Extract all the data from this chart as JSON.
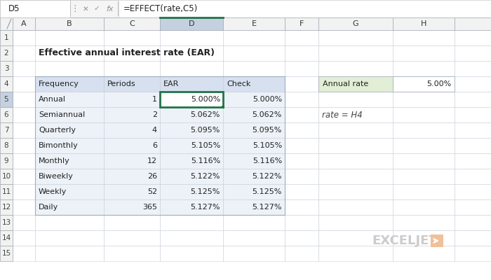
{
  "title": "Effective annual interest rate (EAR)",
  "formula_bar_cell": "D5",
  "formula_bar_formula": "=EFFECT(rate,C5)",
  "row_headers": [
    "1",
    "2",
    "3",
    "4",
    "5",
    "6",
    "7",
    "8",
    "9",
    "10",
    "11",
    "12",
    "13",
    "14",
    "15"
  ],
  "table_headers": [
    "Frequency",
    "Periods",
    "EAR",
    "Check"
  ],
  "table_data": [
    [
      "Annual",
      "1",
      "5.000%",
      "5.000%"
    ],
    [
      "Semiannual",
      "2",
      "5.062%",
      "5.062%"
    ],
    [
      "Quarterly",
      "4",
      "5.095%",
      "5.095%"
    ],
    [
      "Bimonthly",
      "6",
      "5.105%",
      "5.105%"
    ],
    [
      "Monthly",
      "12",
      "5.116%",
      "5.116%"
    ],
    [
      "Biweekly",
      "26",
      "5.122%",
      "5.122%"
    ],
    [
      "Weekly",
      "52",
      "5.125%",
      "5.125%"
    ],
    [
      "Daily",
      "365",
      "5.127%",
      "5.127%"
    ]
  ],
  "side_label": "Annual rate",
  "side_value": "5.00%",
  "note": "rate = H4",
  "col_header_bg": "#f2f2f2",
  "col_header_selected_bg": "#c5d0e0",
  "col_header_border": "#a0a8b0",
  "table_header_bg": "#d6e0ef",
  "table_data_bg": "#edf2f8",
  "cell_selected_border": "#217346",
  "side_label_bg": "#e2eed5",
  "side_value_bg": "#ffffff",
  "side_border": "#b0b8c0",
  "grid_color": "#c8d0d8",
  "bg_color": "#ffffff",
  "formula_bar_bg": "#f5f5f5",
  "formula_bar_border": "#c0c0c0",
  "formula_input_bg": "#ffffff",
  "exceljet_color": "#c8c8c8",
  "exceljet_icon_bg": "#f0c098",
  "row_header_selected_bg": "#c5d0e0",
  "row_header_bg": "#f2f2f2",
  "row_header_border": "#a0a8b0"
}
